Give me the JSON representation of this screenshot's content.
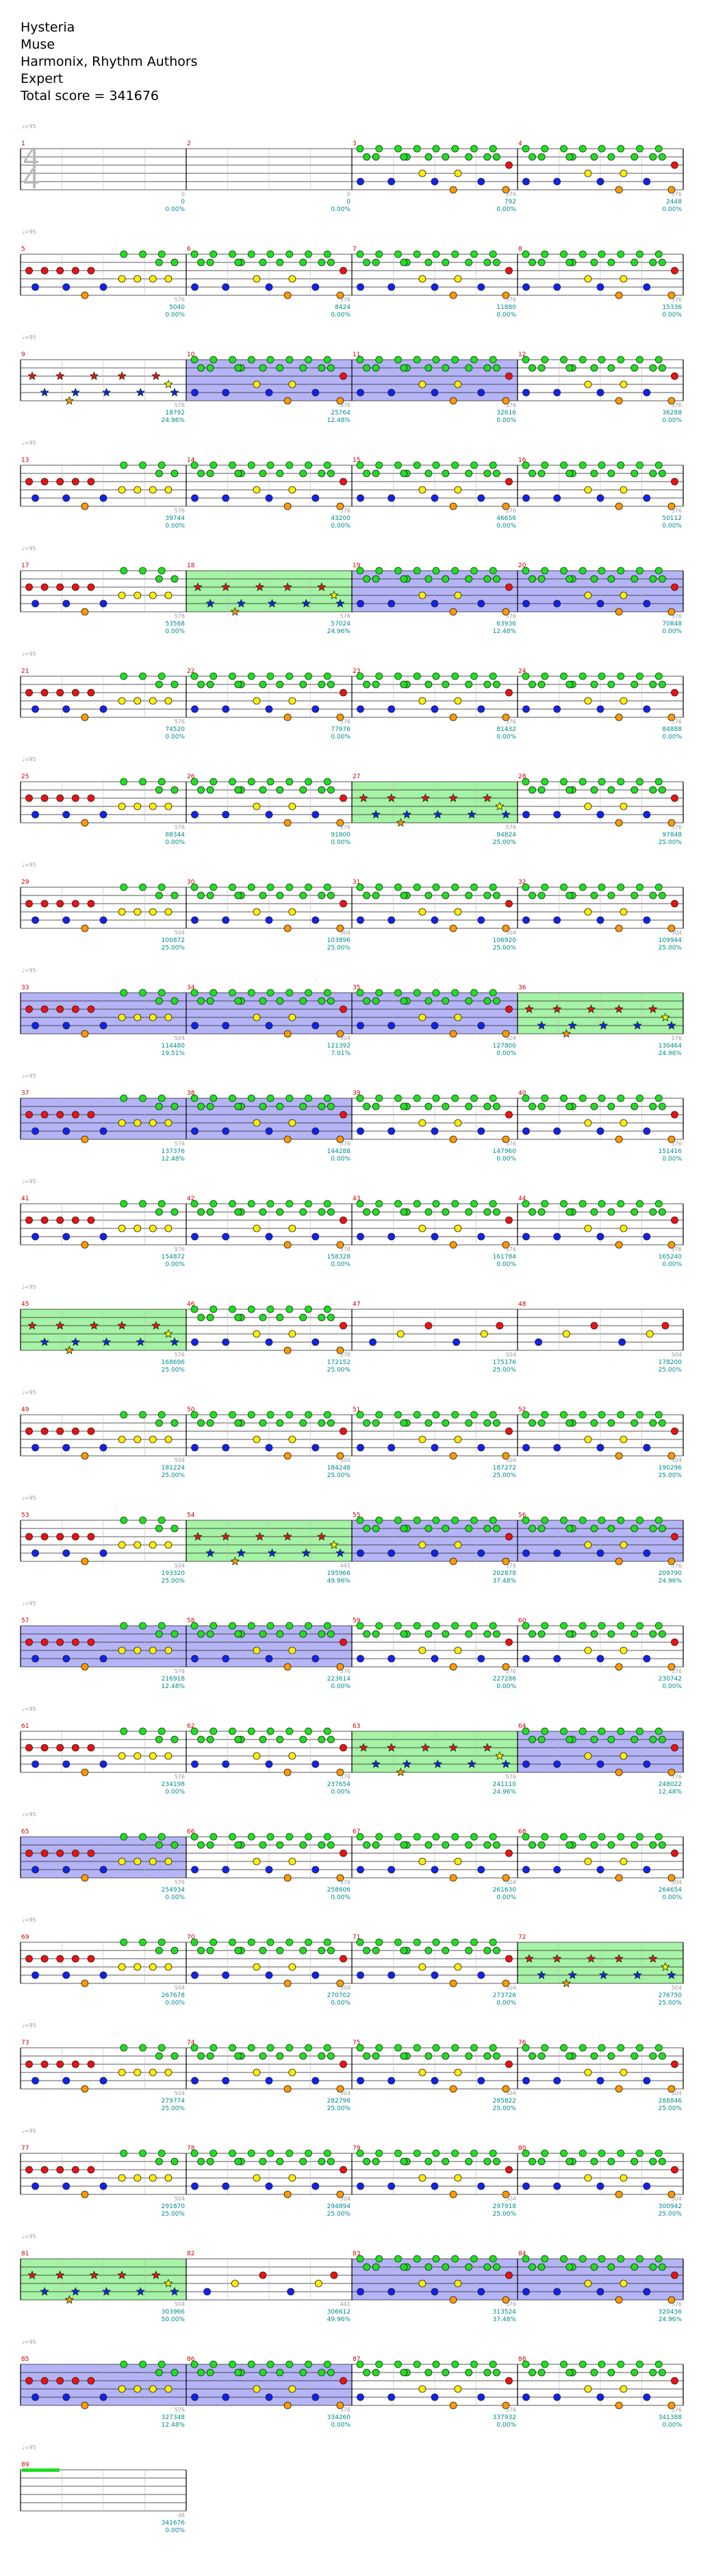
{
  "song": {
    "title": "Hysteria",
    "artist": "Muse",
    "charter": "Harmonix, Rhythm Authors",
    "difficulty": "Expert",
    "total_score": "Total score = 341676"
  },
  "colors": {
    "green": "#22dd22",
    "red": "#ee1111",
    "yellow": "#ffee00",
    "blue": "#1122ee",
    "orange": "#ff9900",
    "sp_phrase": "#88ee88",
    "sp_activation": "#7777ee",
    "measure_number": "#cc0000",
    "score_text": "#008a8a"
  },
  "time_signature": "4/4",
  "tempo_label": "♩=95",
  "measures": [
    {
      "n": 1,
      "score": "0",
      "pct": "0.00%",
      "cnt": "0",
      "pattern": "none"
    },
    {
      "n": 2,
      "score": "0",
      "pct": "0.00%",
      "cnt": "0",
      "pattern": "none"
    },
    {
      "n": 3,
      "score": "792",
      "pct": "0.00%",
      "cnt": "576",
      "pattern": "riff"
    },
    {
      "n": 4,
      "score": "2448",
      "pct": "0.00%",
      "cnt": "576",
      "pattern": "riff"
    },
    {
      "n": 5,
      "score": "5040",
      "pct": "0.00%",
      "cnt": "576",
      "pattern": "red"
    },
    {
      "n": 6,
      "score": "8424",
      "pct": "0.00%",
      "cnt": "576",
      "pattern": "riff"
    },
    {
      "n": 7,
      "score": "11880",
      "pct": "0.00%",
      "cnt": "576",
      "pattern": "riff"
    },
    {
      "n": 8,
      "score": "15336",
      "pct": "0.00%",
      "cnt": "576",
      "pattern": "riff"
    },
    {
      "n": 9,
      "score": "18792",
      "pct": "24.96%",
      "cnt": "576",
      "pattern": "star"
    },
    {
      "n": 10,
      "score": "25764",
      "pct": "12.48%",
      "cnt": "576",
      "pattern": "riff",
      "sp": "act"
    },
    {
      "n": 11,
      "score": "32616",
      "pct": "0.00%",
      "cnt": "576",
      "pattern": "riff",
      "sp": "act"
    },
    {
      "n": 12,
      "score": "36288",
      "pct": "0.00%",
      "cnt": "576",
      "pattern": "riff"
    },
    {
      "n": 13,
      "score": "39744",
      "pct": "0.00%",
      "cnt": "576",
      "pattern": "red"
    },
    {
      "n": 14,
      "score": "43200",
      "pct": "0.00%",
      "cnt": "576",
      "pattern": "riff"
    },
    {
      "n": 15,
      "score": "46656",
      "pct": "0.00%",
      "cnt": "576",
      "pattern": "riff"
    },
    {
      "n": 16,
      "score": "50112",
      "pct": "0.00%",
      "cnt": "576",
      "pattern": "riff"
    },
    {
      "n": 17,
      "score": "53568",
      "pct": "0.00%",
      "cnt": "576",
      "pattern": "red"
    },
    {
      "n": 18,
      "score": "57024",
      "pct": "24.96%",
      "cnt": "576",
      "pattern": "star",
      "sp": "phrase"
    },
    {
      "n": 19,
      "score": "63936",
      "pct": "12.48%",
      "cnt": "576",
      "pattern": "riff",
      "sp": "act"
    },
    {
      "n": 20,
      "score": "70848",
      "pct": "0.00%",
      "cnt": "576",
      "pattern": "riff",
      "sp": "act"
    },
    {
      "n": 21,
      "score": "74520",
      "pct": "0.00%",
      "cnt": "576",
      "pattern": "red"
    },
    {
      "n": 22,
      "score": "77976",
      "pct": "0.00%",
      "cnt": "576",
      "pattern": "riff"
    },
    {
      "n": 23,
      "score": "81432",
      "pct": "0.00%",
      "cnt": "576",
      "pattern": "riff"
    },
    {
      "n": 24,
      "score": "84888",
      "pct": "0.00%",
      "cnt": "576",
      "pattern": "riff"
    },
    {
      "n": 25,
      "score": "88344",
      "pct": "0.00%",
      "cnt": "576",
      "pattern": "red"
    },
    {
      "n": 26,
      "score": "91800",
      "pct": "0.00%",
      "cnt": "576",
      "pattern": "riff"
    },
    {
      "n": 27,
      "score": "94824",
      "pct": "25.00%",
      "cnt": "576",
      "pattern": "star",
      "sp": "phrase"
    },
    {
      "n": 28,
      "score": "97848",
      "pct": "25.00%",
      "cnt": "576",
      "pattern": "riff"
    },
    {
      "n": 29,
      "score": "100872",
      "pct": "25.00%",
      "cnt": "504",
      "pattern": "red"
    },
    {
      "n": 30,
      "score": "103896",
      "pct": "25.00%",
      "cnt": "504",
      "pattern": "riff"
    },
    {
      "n": 31,
      "score": "106920",
      "pct": "25.00%",
      "cnt": "504",
      "pattern": "riff"
    },
    {
      "n": 32,
      "score": "109944",
      "pct": "25.00%",
      "cnt": "504",
      "pattern": "riff"
    },
    {
      "n": 33,
      "score": "114480",
      "pct": "19.51%",
      "cnt": "504",
      "pattern": "red",
      "sp": "act"
    },
    {
      "n": 34,
      "score": "121392",
      "pct": "7.01%",
      "cnt": "504",
      "pattern": "riff",
      "sp": "act"
    },
    {
      "n": 35,
      "score": "127800",
      "pct": "0.00%",
      "cnt": "504",
      "pattern": "riff",
      "sp": "act"
    },
    {
      "n": 36,
      "score": "130464",
      "pct": "24.96%",
      "cnt": "576",
      "pattern": "star",
      "sp": "phrase"
    },
    {
      "n": 37,
      "score": "137376",
      "pct": "12.48%",
      "cnt": "576",
      "pattern": "red",
      "sp": "act"
    },
    {
      "n": 38,
      "score": "144288",
      "pct": "0.00%",
      "cnt": "576",
      "pattern": "riff",
      "sp": "act"
    },
    {
      "n": 39,
      "score": "147960",
      "pct": "0.00%",
      "cnt": "576",
      "pattern": "riff"
    },
    {
      "n": 40,
      "score": "151416",
      "pct": "0.00%",
      "cnt": "576",
      "pattern": "riff"
    },
    {
      "n": 41,
      "score": "154872",
      "pct": "0.00%",
      "cnt": "576",
      "pattern": "red"
    },
    {
      "n": 42,
      "score": "158328",
      "pct": "0.00%",
      "cnt": "576",
      "pattern": "riff"
    },
    {
      "n": 43,
      "score": "161784",
      "pct": "0.00%",
      "cnt": "576",
      "pattern": "riff"
    },
    {
      "n": 44,
      "score": "165240",
      "pct": "0.00%",
      "cnt": "576",
      "pattern": "riff"
    },
    {
      "n": 45,
      "score": "168696",
      "pct": "25.00%",
      "cnt": "576",
      "pattern": "star",
      "sp": "phrase"
    },
    {
      "n": 46,
      "score": "172152",
      "pct": "25.00%",
      "cnt": "576",
      "pattern": "riff"
    },
    {
      "n": 47,
      "score": "175176",
      "pct": "25.00%",
      "cnt": "504",
      "pattern": "sparse"
    },
    {
      "n": 48,
      "score": "178200",
      "pct": "25.00%",
      "cnt": "504",
      "pattern": "sparse"
    },
    {
      "n": 49,
      "score": "181224",
      "pct": "25.00%",
      "cnt": "504",
      "pattern": "red"
    },
    {
      "n": 50,
      "score": "184248",
      "pct": "25.00%",
      "cnt": "504",
      "pattern": "riff"
    },
    {
      "n": 51,
      "score": "187272",
      "pct": "25.00%",
      "cnt": "504",
      "pattern": "riff"
    },
    {
      "n": 52,
      "score": "190296",
      "pct": "25.00%",
      "cnt": "504",
      "pattern": "riff"
    },
    {
      "n": 53,
      "score": "193320",
      "pct": "25.00%",
      "cnt": "504",
      "pattern": "red"
    },
    {
      "n": 54,
      "score": "195966",
      "pct": "49.96%",
      "cnt": "441",
      "pattern": "star",
      "sp": "phrase"
    },
    {
      "n": 55,
      "score": "202878",
      "pct": "37.48%",
      "cnt": "576",
      "pattern": "riff",
      "sp": "act"
    },
    {
      "n": 56,
      "score": "209790",
      "pct": "24.96%",
      "cnt": "576",
      "pattern": "riff",
      "sp": "act"
    },
    {
      "n": 57,
      "score": "216918",
      "pct": "12.48%",
      "cnt": "576",
      "pattern": "red",
      "sp": "act"
    },
    {
      "n": 58,
      "score": "223614",
      "pct": "0.00%",
      "cnt": "576",
      "pattern": "riff",
      "sp": "act"
    },
    {
      "n": 59,
      "score": "227286",
      "pct": "0.00%",
      "cnt": "576",
      "pattern": "riff"
    },
    {
      "n": 60,
      "score": "230742",
      "pct": "0.00%",
      "cnt": "576",
      "pattern": "riff"
    },
    {
      "n": 61,
      "score": "234198",
      "pct": "0.00%",
      "cnt": "576",
      "pattern": "red"
    },
    {
      "n": 62,
      "score": "237654",
      "pct": "0.00%",
      "cnt": "576",
      "pattern": "riff"
    },
    {
      "n": 63,
      "score": "241110",
      "pct": "24.96%",
      "cnt": "576",
      "pattern": "star",
      "sp": "phrase"
    },
    {
      "n": 64,
      "score": "248022",
      "pct": "12.48%",
      "cnt": "576",
      "pattern": "riff",
      "sp": "act"
    },
    {
      "n": 65,
      "score": "254934",
      "pct": "0.00%",
      "cnt": "576",
      "pattern": "red",
      "sp": "act"
    },
    {
      "n": 66,
      "score": "258606",
      "pct": "0.00%",
      "cnt": "576",
      "pattern": "riff"
    },
    {
      "n": 67,
      "score": "261630",
      "pct": "0.00%",
      "cnt": "504",
      "pattern": "riff"
    },
    {
      "n": 68,
      "score": "264654",
      "pct": "0.00%",
      "cnt": "504",
      "pattern": "riff"
    },
    {
      "n": 69,
      "score": "267678",
      "pct": "0.00%",
      "cnt": "504",
      "pattern": "red"
    },
    {
      "n": 70,
      "score": "270702",
      "pct": "0.00%",
      "cnt": "504",
      "pattern": "riff"
    },
    {
      "n": 71,
      "score": "273726",
      "pct": "0.00%",
      "cnt": "504",
      "pattern": "riff"
    },
    {
      "n": 72,
      "score": "276750",
      "pct": "25.00%",
      "cnt": "504",
      "pattern": "star",
      "sp": "phrase"
    },
    {
      "n": 73,
      "score": "279774",
      "pct": "25.00%",
      "cnt": "504",
      "pattern": "red"
    },
    {
      "n": 74,
      "score": "282798",
      "pct": "25.00%",
      "cnt": "504",
      "pattern": "riff"
    },
    {
      "n": 75,
      "score": "285822",
      "pct": "25.00%",
      "cnt": "504",
      "pattern": "riff"
    },
    {
      "n": 76,
      "score": "288846",
      "pct": "25.00%",
      "cnt": "504",
      "pattern": "riff"
    },
    {
      "n": 77,
      "score": "291870",
      "pct": "25.00%",
      "cnt": "504",
      "pattern": "red"
    },
    {
      "n": 78,
      "score": "294894",
      "pct": "25.00%",
      "cnt": "504",
      "pattern": "riff"
    },
    {
      "n": 79,
      "score": "297918",
      "pct": "25.00%",
      "cnt": "504",
      "pattern": "riff"
    },
    {
      "n": 80,
      "score": "300942",
      "pct": "25.00%",
      "cnt": "504",
      "pattern": "riff"
    },
    {
      "n": 81,
      "score": "303966",
      "pct": "50.00%",
      "cnt": "504",
      "pattern": "star",
      "sp": "phrase"
    },
    {
      "n": 82,
      "score": "306612",
      "pct": "49.96%",
      "cnt": "441",
      "pattern": "sparse"
    },
    {
      "n": 83,
      "score": "313524",
      "pct": "37.48%",
      "cnt": "576",
      "pattern": "riff",
      "sp": "act"
    },
    {
      "n": 84,
      "score": "320436",
      "pct": "24.96%",
      "cnt": "576",
      "pattern": "riff",
      "sp": "act"
    },
    {
      "n": 85,
      "score": "327348",
      "pct": "12.48%",
      "cnt": "576",
      "pattern": "red",
      "sp": "act"
    },
    {
      "n": 86,
      "score": "334260",
      "pct": "0.00%",
      "cnt": "576",
      "pattern": "riff",
      "sp": "act"
    },
    {
      "n": 87,
      "score": "337932",
      "pct": "0.00%",
      "cnt": "576",
      "pattern": "riff"
    },
    {
      "n": 88,
      "score": "341388",
      "pct": "0.00%",
      "cnt": "576",
      "pattern": "riff"
    },
    {
      "n": 89,
      "score": "341676",
      "pct": "0.00%",
      "cnt": "48",
      "pattern": "end"
    }
  ]
}
